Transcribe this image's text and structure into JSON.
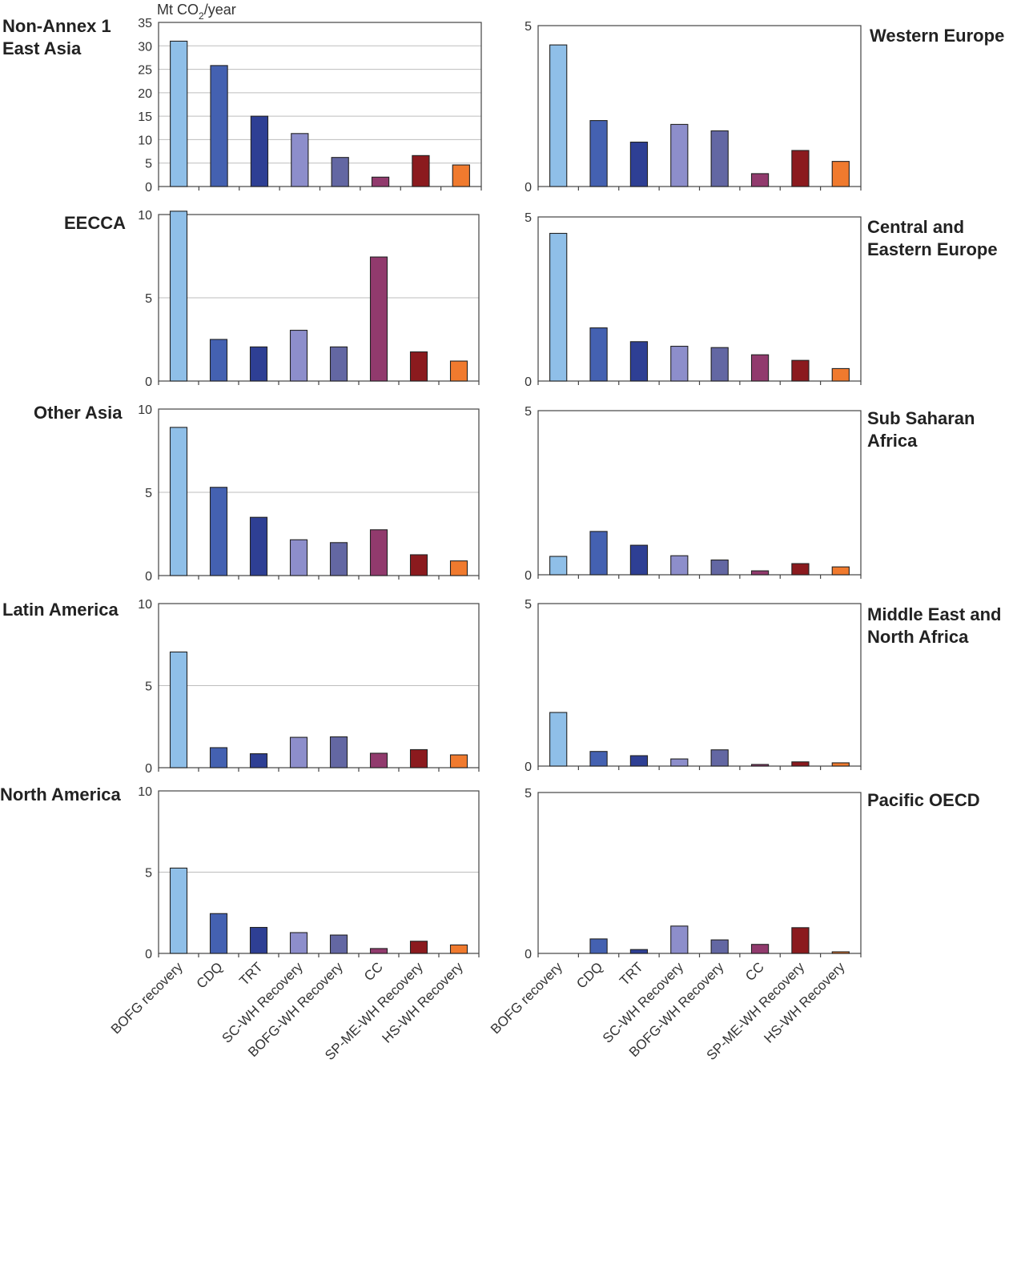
{
  "unit_label_main": "Mt CO",
  "unit_label_sub": "2",
  "unit_label_tail": "/year",
  "categories": [
    "BOFG recovery",
    "CDQ",
    "TRT",
    "SC-WH Recovery",
    "BOFG-WH Recovery",
    "CC",
    "SP-ME-WH Recovery",
    "HS-WH Recovery"
  ],
  "colors": {
    "BOFG recovery": "#8fbfe8",
    "CDQ": "#4461b1",
    "TRT": "#2e3f94",
    "SC-WH Recovery": "#8d8ecb",
    "BOFG-WH Recovery": "#6367a3",
    "CC": "#913a6d",
    "SP-ME-WH Recovery": "#8b1a1e",
    "HS-WH Recovery": "#f07a2e"
  },
  "chart_data": [
    {
      "type": "bar",
      "title_lines": [
        "Non-Annex 1",
        "East Asia"
      ],
      "ylim": [
        0,
        35
      ],
      "yticks": [
        "0",
        "5",
        "10",
        "15",
        "20",
        "25",
        "30",
        "35"
      ],
      "values": [
        31,
        25.8,
        15,
        11.3,
        6.2,
        2,
        6.6,
        4.6
      ]
    },
    {
      "type": "bar",
      "title_lines": [
        "Western Europe"
      ],
      "ylim": [
        0,
        5
      ],
      "yticks": [
        "0",
        "5"
      ],
      "values": [
        4.4,
        2.05,
        1.38,
        1.93,
        1.73,
        0.4,
        1.12,
        0.78
      ]
    },
    {
      "type": "bar",
      "title_lines": [
        "EECCA"
      ],
      "ylim": [
        0,
        10
      ],
      "yticks": [
        "0",
        "5",
        "10"
      ],
      "values": [
        10.2,
        2.5,
        2.05,
        3.05,
        2.05,
        7.45,
        1.75,
        1.2
      ]
    },
    {
      "type": "bar",
      "title_lines": [
        "Central and",
        "Eastern Europe"
      ],
      "ylim": [
        0,
        5
      ],
      "yticks": [
        "0",
        "5"
      ],
      "values": [
        4.5,
        1.62,
        1.2,
        1.06,
        1.02,
        0.8,
        0.63,
        0.38
      ]
    },
    {
      "type": "bar",
      "title_lines": [
        "Other Asia"
      ],
      "ylim": [
        0,
        10
      ],
      "yticks": [
        "0",
        "5",
        "10"
      ],
      "values": [
        8.9,
        5.3,
        3.5,
        2.15,
        1.98,
        2.75,
        1.25,
        0.88
      ]
    },
    {
      "type": "bar",
      "title_lines": [
        "Sub Saharan",
        "Africa"
      ],
      "ylim": [
        0,
        5
      ],
      "yticks": [
        "0",
        "5"
      ],
      "values": [
        0.56,
        1.32,
        0.9,
        0.58,
        0.45,
        0.12,
        0.34,
        0.24
      ]
    },
    {
      "type": "bar",
      "title_lines": [
        "Latin America"
      ],
      "ylim": [
        0,
        10
      ],
      "yticks": [
        "0",
        "5",
        "10"
      ],
      "values": [
        7.05,
        1.22,
        0.85,
        1.85,
        1.88,
        0.88,
        1.1,
        0.78
      ]
    },
    {
      "type": "bar",
      "title_lines": [
        "Middle East and",
        "North Africa"
      ],
      "ylim": [
        0,
        5
      ],
      "yticks": [
        "0",
        "5"
      ],
      "values": [
        1.65,
        0.45,
        0.32,
        0.22,
        0.5,
        0.05,
        0.13,
        0.1
      ]
    },
    {
      "type": "bar",
      "title_lines": [
        "North America"
      ],
      "ylim": [
        0,
        10
      ],
      "yticks": [
        "0",
        "5",
        "10"
      ],
      "values": [
        5.25,
        2.45,
        1.6,
        1.28,
        1.13,
        0.3,
        0.75,
        0.52
      ]
    },
    {
      "type": "bar",
      "title_lines": [
        "Pacific OECD"
      ],
      "ylim": [
        0,
        5
      ],
      "yticks": [
        "0",
        "5"
      ],
      "values": [
        0,
        0.45,
        0.12,
        0.85,
        0.42,
        0.28,
        0.8,
        0.05
      ]
    }
  ]
}
